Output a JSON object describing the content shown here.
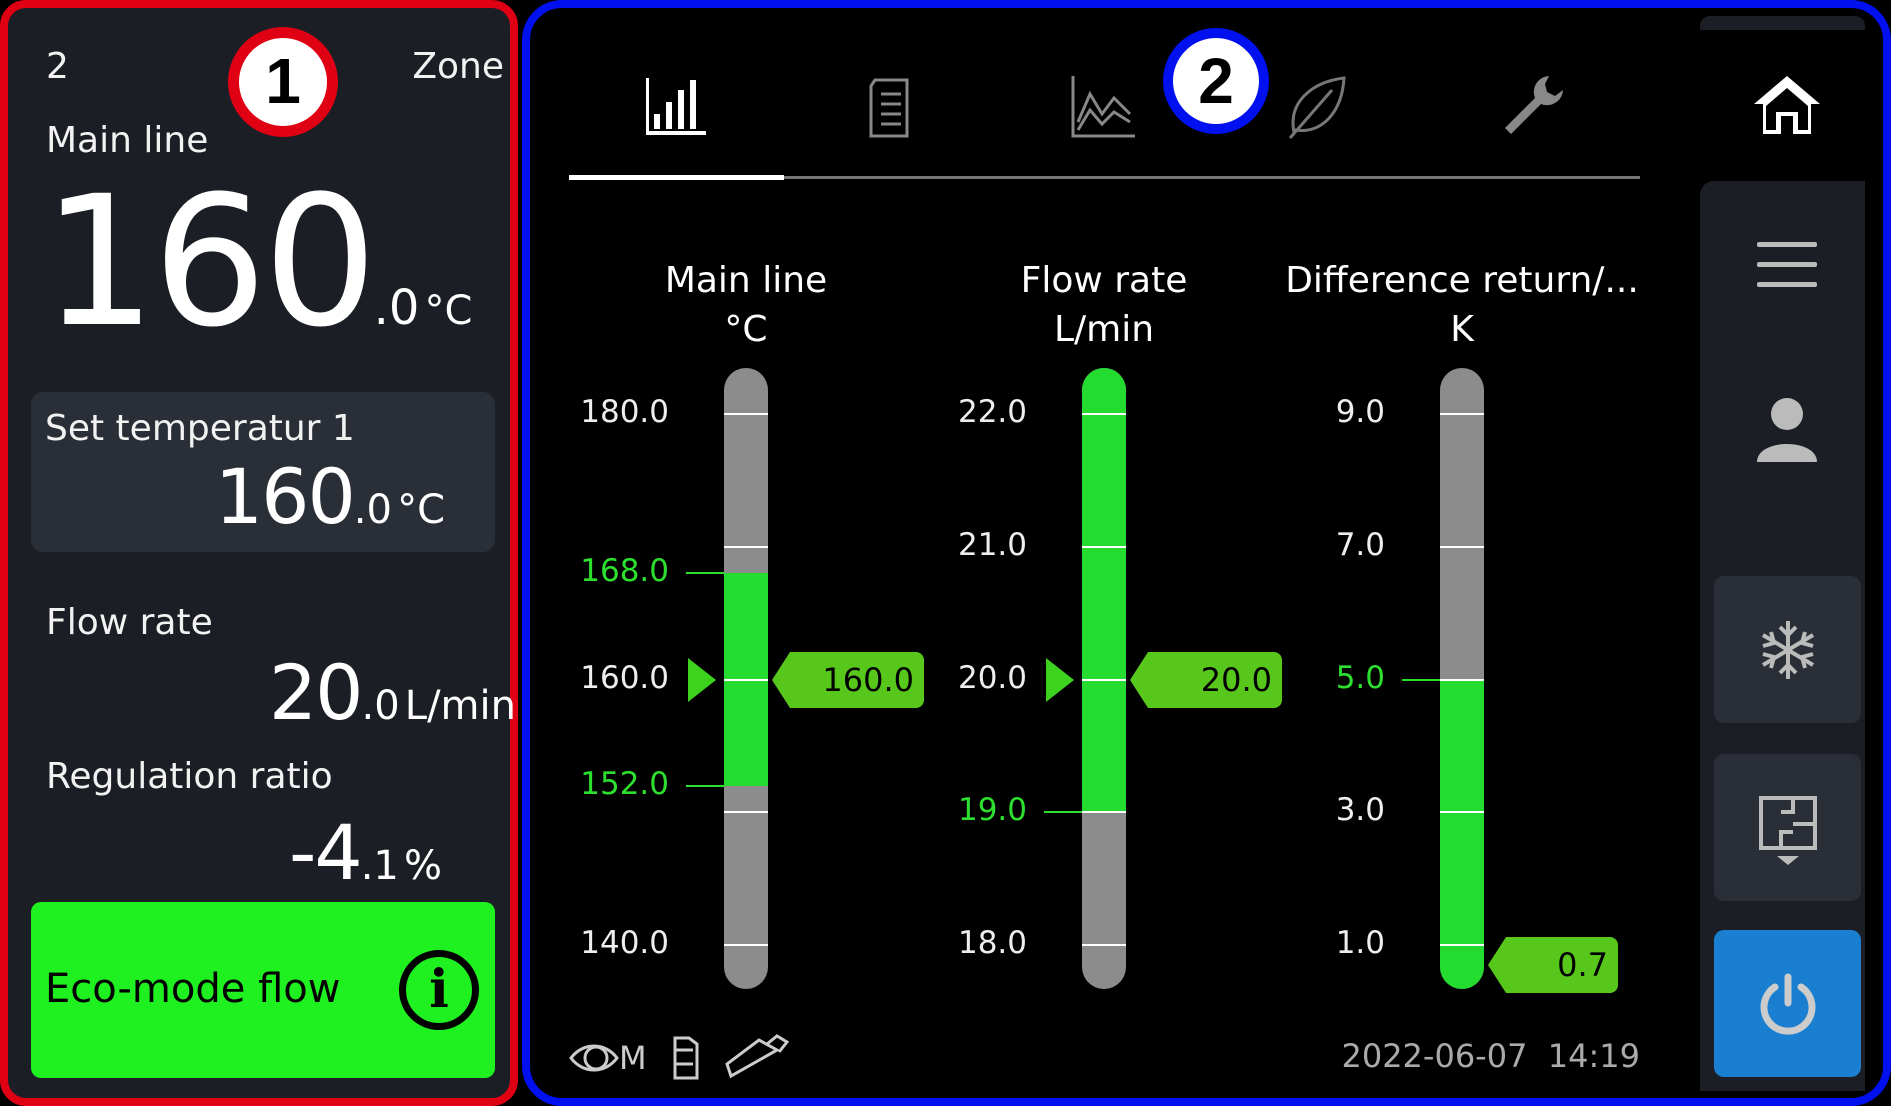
{
  "zone_panel": {
    "zone_number": "2",
    "zone_label": "Zone",
    "main_line": {
      "label": "Main line",
      "value_int": "160",
      "value_dec": ".0",
      "unit": "°C"
    },
    "set_temperature": {
      "label": "Set temperatur 1",
      "value_int": "160",
      "value_dec": ".0",
      "unit": "°C"
    },
    "flow_rate": {
      "label": "Flow rate",
      "value_int": "20",
      "value_dec": ".0",
      "unit": "L/min"
    },
    "regulation_ratio": {
      "label": "Regulation ratio",
      "value_int": "-4",
      "value_dec": ".1",
      "unit": "%"
    },
    "eco_mode": {
      "label": "Eco-mode flow",
      "icon": "info-icon",
      "color": "#1ff01f"
    }
  },
  "annotations": {
    "one": "1",
    "two": "2"
  },
  "tabs": [
    {
      "icon": "bar-chart-icon",
      "active": true
    },
    {
      "icon": "document-icon"
    },
    {
      "icon": "line-chart-icon"
    },
    {
      "icon": "leaf-icon"
    },
    {
      "icon": "wrench-icon"
    }
  ],
  "sidebar": [
    "home-icon",
    "menu-icon",
    "user-icon",
    "snowflake-icon",
    "floorplan-icon",
    "power-icon"
  ],
  "power_color": "#1a7fd0",
  "chart_data": [
    {
      "type": "gauge",
      "title": "Main line",
      "unit": "°C",
      "min": 140,
      "max": 180,
      "ticks": [
        "180.0",
        "160.0",
        "140.0"
      ],
      "limits": [
        "168.0",
        "152.0"
      ],
      "value": "160.0",
      "setpoint": 160
    },
    {
      "type": "gauge",
      "title": "Flow rate",
      "unit": "L/min",
      "min": 18,
      "max": 22,
      "ticks": [
        "22.0",
        "21.0",
        "20.0",
        "18.0"
      ],
      "limits": [
        "19.0"
      ],
      "limit_high": null,
      "value": "20.0",
      "setpoint": 20
    },
    {
      "type": "gauge",
      "title": "Difference return/...",
      "unit": "K",
      "min": 1,
      "max": 9,
      "ticks": [
        "9.0",
        "7.0",
        "3.0",
        "1.0"
      ],
      "limits": [
        "5.0"
      ],
      "limit_low": null,
      "value": "0.7",
      "setpoint": null
    }
  ],
  "footer": {
    "mode": "M",
    "datetime": "2022-06-07  14:19"
  }
}
